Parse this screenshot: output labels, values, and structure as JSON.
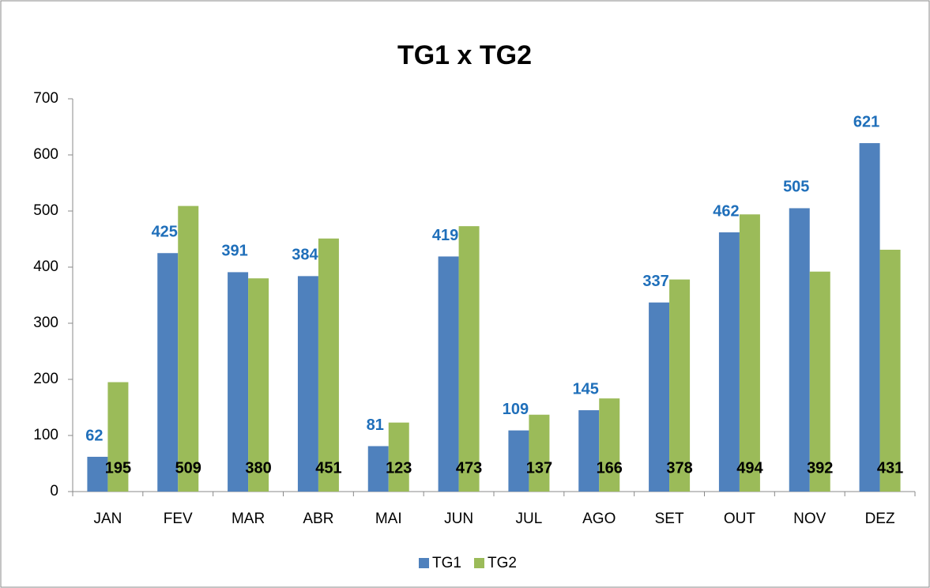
{
  "chart_data": {
    "type": "bar",
    "title": "TG1 x TG2",
    "categories": [
      "JAN",
      "FEV",
      "MAR",
      "ABR",
      "MAI",
      "JUN",
      "JUL",
      "AGO",
      "SET",
      "OUT",
      "NOV",
      "DEZ"
    ],
    "series": [
      {
        "name": "TG1",
        "color": "#4f81bd",
        "values": [
          62,
          425,
          391,
          384,
          81,
          419,
          109,
          145,
          337,
          462,
          505,
          621
        ]
      },
      {
        "name": "TG2",
        "color": "#9bbb59",
        "values": [
          195,
          509,
          380,
          451,
          123,
          473,
          137,
          166,
          378,
          494,
          392,
          431
        ]
      }
    ],
    "ylim": [
      0,
      700
    ],
    "yticks": [
      0,
      100,
      200,
      300,
      400,
      500,
      600,
      700
    ],
    "grid": false,
    "legend": "bottom"
  }
}
